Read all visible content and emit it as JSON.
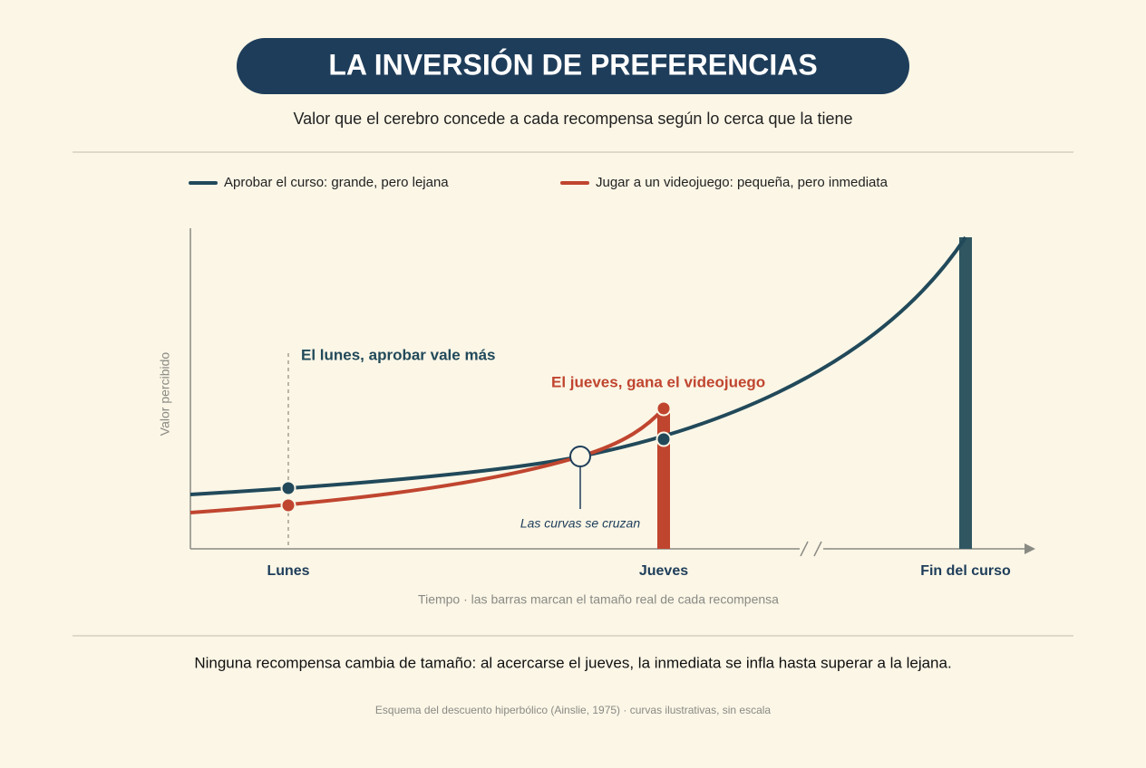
{
  "header": {
    "title": "LA INVERSIÓN DE PREFERENCIAS",
    "subtitle": "Valor que el cerebro concede a cada recompensa según lo cerca que la tiene"
  },
  "legend": [
    "Aprobar el curso: grande, pero lejana",
    "Jugar a un videojuego: pequeña, pero inmediata"
  ],
  "y_axis_label": "Valor percibido",
  "annotations": {
    "monday": "El lunes, aprobar vale más",
    "thursday": "El jueves, gana el videojuego",
    "crossing": "Las curvas se cruzan"
  },
  "x_labels": [
    "Lunes",
    "Jueves",
    "Fin del curso"
  ],
  "x_caption": "Tiempo · las barras marcan el tamaño real de cada recompensa",
  "conclusion": "Ninguna recompensa cambia de tamaño: al acercarse el jueves, la inmediata se infla hasta superar a la lejana.",
  "source": "Esquema del descuento hiperbólico (Ainslie, 1975) · curvas ilustrativas, sin escala"
}
